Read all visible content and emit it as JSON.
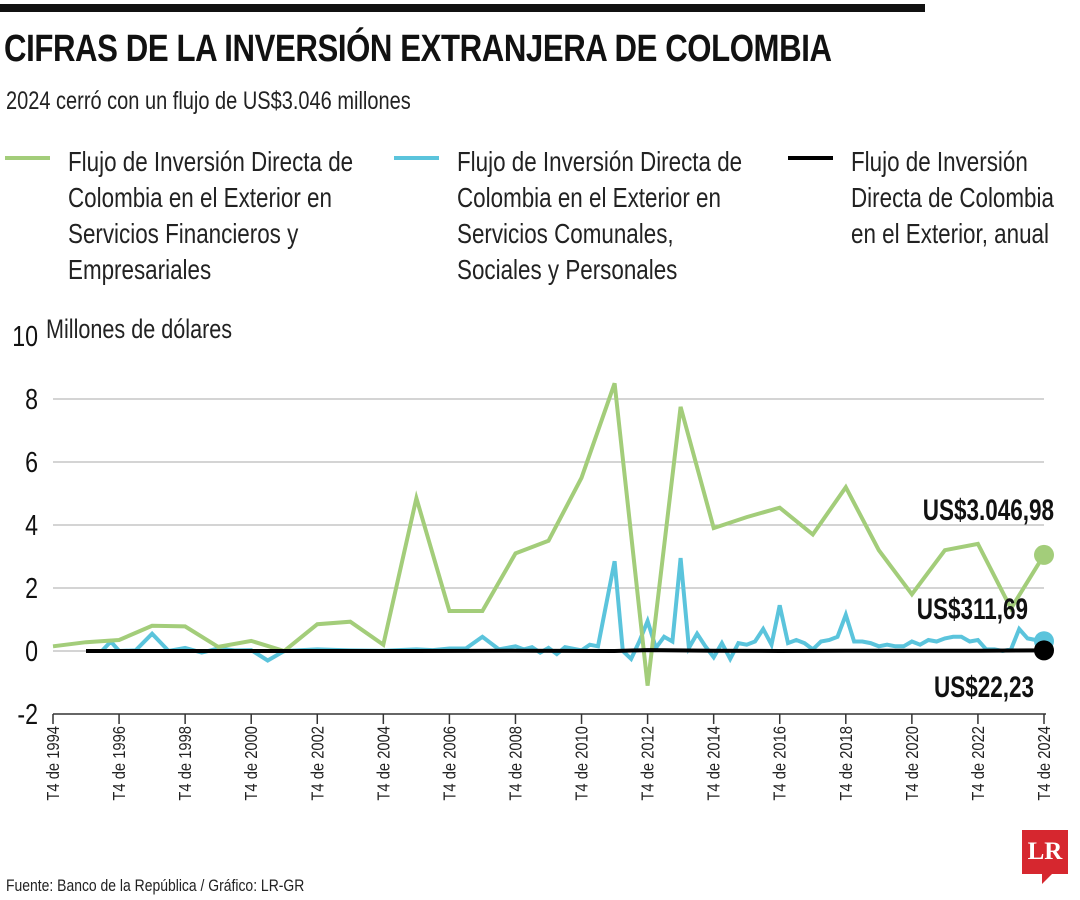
{
  "header": {
    "title": "CIFRAS DE LA INVERSIÓN EXTRANJERA DE COLOMBIA",
    "subtitle": "2024 cerró con un flujo de US$3.046 millones"
  },
  "legend": [
    {
      "lines": [
        "Flujo de Inversión Directa de",
        "Colombia en el Exterior en",
        "Servicios Financieros y",
        "Empresariales"
      ],
      "color": "#a3cd7a"
    },
    {
      "lines": [
        "Flujo de Inversión Directa de",
        "Colombia en el Exterior en",
        "Servicios Comunales,",
        "Sociales y Personales"
      ],
      "color": "#5bc4dc"
    },
    {
      "lines": [
        "Flujo de Inversión",
        "Directa de Colombia",
        "en el Exterior, anual"
      ],
      "color": "#000000"
    }
  ],
  "footer": {
    "source": "Fuente: Banco de la República / Gráfico: LR-GR"
  },
  "logo": {
    "text": "LR",
    "color": "#d6272f"
  },
  "chart_data": {
    "type": "line",
    "title": "CIFRAS DE LA INVERSIÓN EXTRANJERA DE COLOMBIA",
    "ylabel": "Millones de dólares",
    "ylim": [
      -2,
      10
    ],
    "yticks": [
      -2,
      0,
      2,
      4,
      6,
      8,
      10
    ],
    "xticks": [
      "T4 de 1994",
      "T4 de 1996",
      "T4 de 1998",
      "T4 de 2000",
      "T4 de 2002",
      "T4 de 2004",
      "T4 de 2006",
      "T4 de 2008",
      "T4 de 2010",
      "T4 de 2012",
      "T4 de 2014",
      "T4 de 2016",
      "T4 de 2018",
      "T4 de 2020",
      "T4 de 2022",
      "T4 de 2024"
    ],
    "grid": true,
    "series": [
      {
        "name": "Flujo de Inversión Directa de Colombia en el Exterior en Servicios Financieros y Empresariales",
        "color": "#a3cd7a",
        "end_label": "US$3.046,98",
        "points": [
          [
            "T4 de 1994",
            0.15
          ],
          [
            "T4 de 1995",
            0.28
          ],
          [
            "T4 de 1996",
            0.35
          ],
          [
            "T4 de 1997",
            0.8
          ],
          [
            "T4 de 1998",
            0.78
          ],
          [
            "T4 de 1999",
            0.13
          ],
          [
            "T4 de 2000",
            0.32
          ],
          [
            "T4 de 2001",
            0.0
          ],
          [
            "T4 de 2002",
            0.85
          ],
          [
            "T4 de 2003",
            0.93
          ],
          [
            "T4 de 2004",
            0.2
          ],
          [
            "T4 de 2005",
            4.85
          ],
          [
            "T4 de 2006",
            1.27
          ],
          [
            "T4 de 2007",
            1.27
          ],
          [
            "T4 de 2008",
            3.1
          ],
          [
            "T4 de 2009",
            3.5
          ],
          [
            "T4 de 2010",
            5.5
          ],
          [
            "T4 de 2011",
            8.5
          ],
          [
            "T4 de 2012",
            -1.1
          ],
          [
            "T4 de 2013",
            7.75
          ],
          [
            "T4 de 2014",
            3.9
          ],
          [
            "T4 de 2015",
            4.25
          ],
          [
            "T4 de 2016",
            4.55
          ],
          [
            "T4 de 2017",
            3.7
          ],
          [
            "T4 de 2018",
            5.2
          ],
          [
            "T4 de 2019",
            3.2
          ],
          [
            "T4 de 2020",
            1.8
          ],
          [
            "T4 de 2021",
            3.2
          ],
          [
            "T4 de 2022",
            3.4
          ],
          [
            "T4 de 2023",
            1.35
          ],
          [
            "T4 de 2024",
            3.05
          ]
        ]
      },
      {
        "name": "Flujo de Inversión Directa de Colombia en el Exterior en Servicios Comunales, Sociales y Personales",
        "color": "#5bc4dc",
        "end_label": "US$311,69",
        "points": [
          [
            "T2 de 1996",
            0.02
          ],
          [
            "T3 de 1996",
            0.3
          ],
          [
            "T4 de 1996",
            0.0
          ],
          [
            "T2 de 1997",
            0.02
          ],
          [
            "T4 de 1997",
            0.55
          ],
          [
            "T2 de 1998",
            0.0
          ],
          [
            "T4 de 1998",
            0.1
          ],
          [
            "T2 de 1999",
            -0.05
          ],
          [
            "T4 de 1999",
            0.08
          ],
          [
            "T2 de 2000",
            0.02
          ],
          [
            "T4 de 2000",
            0.03
          ],
          [
            "T2 de 2001",
            -0.3
          ],
          [
            "T4 de 2001",
            0.0
          ],
          [
            "T4 de 2002",
            0.05
          ],
          [
            "T4 de 2003",
            0.02
          ],
          [
            "T4 de 2004",
            0.01
          ],
          [
            "T4 de 2005",
            0.05
          ],
          [
            "T2 de 2006",
            0.03
          ],
          [
            "T4 de 2006",
            0.08
          ],
          [
            "T2 de 2007",
            0.08
          ],
          [
            "T4 de 2007",
            0.45
          ],
          [
            "T2 de 2008",
            0.05
          ],
          [
            "T4 de 2008",
            0.15
          ],
          [
            "T1 de 2009",
            0.05
          ],
          [
            "T2 de 2009",
            0.12
          ],
          [
            "T3 de 2009",
            -0.05
          ],
          [
            "T4 de 2009",
            0.1
          ],
          [
            "T1 de 2010",
            -0.1
          ],
          [
            "T2 de 2010",
            0.12
          ],
          [
            "T4 de 2010",
            0.02
          ],
          [
            "T1 de 2011",
            0.2
          ],
          [
            "T2 de 2011",
            0.15
          ],
          [
            "T4 de 2011",
            2.85
          ],
          [
            "T1 de 2012",
            0.0
          ],
          [
            "T2 de 2012",
            -0.25
          ],
          [
            "T3 de 2012",
            0.3
          ],
          [
            "T4 de 2012",
            0.95
          ],
          [
            "T1 de 2013",
            0.1
          ],
          [
            "T2 de 2013",
            0.45
          ],
          [
            "T3 de 2013",
            0.3
          ],
          [
            "T4 de 2013",
            2.95
          ],
          [
            "T1 de 2014",
            0.1
          ],
          [
            "T2 de 2014",
            0.55
          ],
          [
            "T3 de 2014",
            0.15
          ],
          [
            "T4 de 2014",
            -0.2
          ],
          [
            "T1 de 2015",
            0.25
          ],
          [
            "T2 de 2015",
            -0.25
          ],
          [
            "T3 de 2015",
            0.25
          ],
          [
            "T4 de 2015",
            0.2
          ],
          [
            "T1 de 2016",
            0.3
          ],
          [
            "T2 de 2016",
            0.7
          ],
          [
            "T3 de 2016",
            0.2
          ],
          [
            "T4 de 2016",
            1.45
          ],
          [
            "T1 de 2017",
            0.25
          ],
          [
            "T2 de 2017",
            0.35
          ],
          [
            "T3 de 2017",
            0.25
          ],
          [
            "T4 de 2017",
            0.05
          ],
          [
            "T1 de 2018",
            0.3
          ],
          [
            "T2 de 2018",
            0.35
          ],
          [
            "T3 de 2018",
            0.45
          ],
          [
            "T4 de 2018",
            1.15
          ],
          [
            "T1 de 2019",
            0.3
          ],
          [
            "T2 de 2019",
            0.3
          ],
          [
            "T3 de 2019",
            0.25
          ],
          [
            "T4 de 2019",
            0.15
          ],
          [
            "T1 de 2020",
            0.2
          ],
          [
            "T2 de 2020",
            0.15
          ],
          [
            "T3 de 2020",
            0.15
          ],
          [
            "T4 de 2020",
            0.3
          ],
          [
            "T1 de 2021",
            0.2
          ],
          [
            "T2 de 2021",
            0.35
          ],
          [
            "T3 de 2021",
            0.3
          ],
          [
            "T4 de 2021",
            0.4
          ],
          [
            "T1 de 2022",
            0.45
          ],
          [
            "T2 de 2022",
            0.45
          ],
          [
            "T3 de 2022",
            0.3
          ],
          [
            "T4 de 2022",
            0.35
          ],
          [
            "T1 de 2023",
            0.05
          ],
          [
            "T2 de 2023",
            0.05
          ],
          [
            "T3 de 2023",
            0.0
          ],
          [
            "T4 de 2023",
            0.05
          ],
          [
            "T1 de 2024",
            0.7
          ],
          [
            "T2 de 2024",
            0.4
          ],
          [
            "T3 de 2024",
            0.35
          ],
          [
            "T4 de 2024",
            0.31
          ]
        ]
      },
      {
        "name": "Flujo de Inversión Directa de Colombia en el Exterior, anual",
        "color": "#000000",
        "end_label": "US$22,23",
        "points": [
          [
            "T4 de 1995",
            0.0
          ],
          [
            "T4 de 2000",
            0.0
          ],
          [
            "T4 de 2005",
            0.0
          ],
          [
            "T4 de 2008",
            0.01
          ],
          [
            "T4 de 2011",
            0.0
          ],
          [
            "T4 de 2012",
            0.03
          ],
          [
            "T4 de 2014",
            0.01
          ],
          [
            "T4 de 2016",
            0.0
          ],
          [
            "T4 de 2018",
            0.01
          ],
          [
            "T4 de 2020",
            0.01
          ],
          [
            "T4 de 2022",
            0.01
          ],
          [
            "T4 de 2024",
            0.02
          ]
        ]
      }
    ]
  }
}
